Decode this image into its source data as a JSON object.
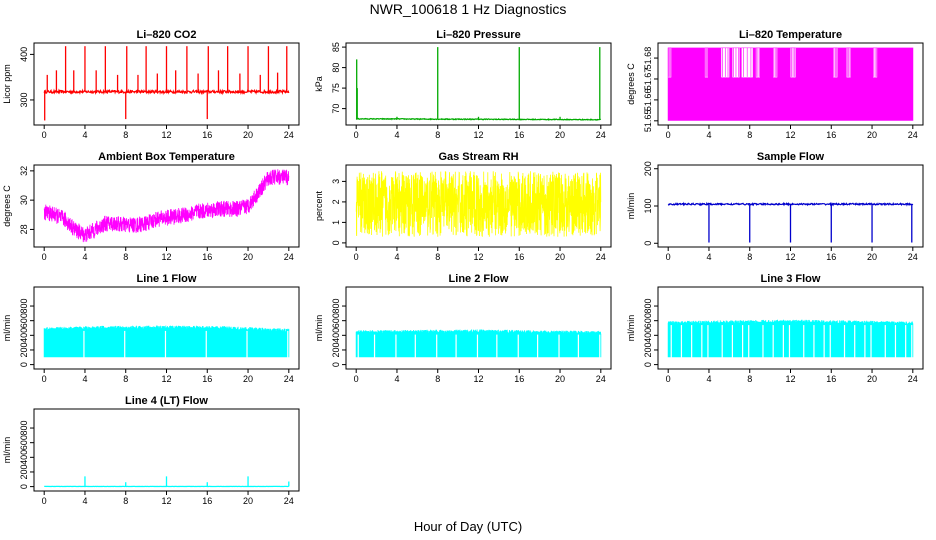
{
  "figure": {
    "title": "NWR_100618  1 Hz Diagnostics",
    "xlabel": "Hour of Day (UTC)"
  },
  "chart_data": [
    {
      "type": "line",
      "title": "Li–820 CO2",
      "ylabel": "Licor ppm",
      "color": "#ff0000",
      "xlim": [
        -1,
        25
      ],
      "xticks": [
        0,
        4,
        8,
        12,
        16,
        20,
        24
      ],
      "ylim": [
        245,
        425
      ],
      "yticks": [
        300,
        400
      ],
      "style": "spiky",
      "baseline": 318,
      "noise": 3,
      "spikes": [
        {
          "x": 0.05,
          "y": 255
        },
        {
          "x": 0.3,
          "y": 355
        },
        {
          "x": 1.2,
          "y": 365
        },
        {
          "x": 2.1,
          "y": 418
        },
        {
          "x": 2.9,
          "y": 365
        },
        {
          "x": 4.0,
          "y": 418
        },
        {
          "x": 5.1,
          "y": 365
        },
        {
          "x": 6.0,
          "y": 418
        },
        {
          "x": 7.2,
          "y": 355
        },
        {
          "x": 8.0,
          "y": 258
        },
        {
          "x": 8.1,
          "y": 418
        },
        {
          "x": 9.2,
          "y": 355
        },
        {
          "x": 10.0,
          "y": 418
        },
        {
          "x": 11.1,
          "y": 358
        },
        {
          "x": 12.0,
          "y": 418
        },
        {
          "x": 12.9,
          "y": 365
        },
        {
          "x": 14.0,
          "y": 418
        },
        {
          "x": 15.1,
          "y": 358
        },
        {
          "x": 16.0,
          "y": 258
        },
        {
          "x": 16.1,
          "y": 418
        },
        {
          "x": 17.1,
          "y": 365
        },
        {
          "x": 18.0,
          "y": 418
        },
        {
          "x": 19.2,
          "y": 358
        },
        {
          "x": 20.0,
          "y": 418
        },
        {
          "x": 21.2,
          "y": 355
        },
        {
          "x": 22.0,
          "y": 418
        },
        {
          "x": 22.9,
          "y": 360
        },
        {
          "x": 23.8,
          "y": 418
        }
      ]
    },
    {
      "type": "line",
      "title": "Li–820 Pressure",
      "ylabel": "kPa",
      "color": "#00aa00",
      "xlim": [
        -1,
        25
      ],
      "xticks": [
        0,
        4,
        8,
        12,
        16,
        20,
        24
      ],
      "ylim": [
        66,
        86
      ],
      "yticks": [
        70,
        75,
        80,
        85
      ],
      "style": "spiky",
      "baseline": 67.4,
      "noise": 0.1,
      "trend": [
        [
          0,
          67.5
        ],
        [
          24,
          67.3
        ]
      ],
      "spikes": [
        {
          "x": 0.05,
          "y": 82
        },
        {
          "x": 0.1,
          "y": 75
        },
        {
          "x": 4.0,
          "y": 68
        },
        {
          "x": 8.0,
          "y": 85
        },
        {
          "x": 12.0,
          "y": 68
        },
        {
          "x": 16.0,
          "y": 85
        },
        {
          "x": 20.0,
          "y": 68
        },
        {
          "x": 23.9,
          "y": 85
        }
      ]
    },
    {
      "type": "area",
      "title": "Li–820 Temperature",
      "ylabel": "degrees C",
      "color": "#ff00ff",
      "xlim": [
        -1,
        25
      ],
      "xticks": [
        0,
        4,
        8,
        12,
        16,
        20,
        24
      ],
      "ylim": [
        51.648,
        51.6872
      ],
      "yticks": [
        51.65,
        51.66,
        51.67,
        51.68
      ],
      "style": "band",
      "band": [
        51.65,
        51.685
      ],
      "gap_segments": [
        [
          0.0,
          0.3,
          51.671
        ],
        [
          3.6,
          3.9,
          51.671
        ],
        [
          5.2,
          6.0,
          51.671
        ],
        [
          6.3,
          7.0,
          51.671
        ],
        [
          7.2,
          8.3,
          51.671
        ],
        [
          8.6,
          9.0,
          51.671
        ],
        [
          10.3,
          10.7,
          51.671
        ],
        [
          12.0,
          12.5,
          51.671
        ],
        [
          16.2,
          16.6,
          51.671
        ],
        [
          17.5,
          17.9,
          51.671
        ],
        [
          20.1,
          20.5,
          51.671
        ]
      ]
    },
    {
      "type": "line",
      "title": "Ambient Box Temperature",
      "ylabel": "degrees C",
      "color": "#ff00ff",
      "xlim": [
        -1,
        25
      ],
      "xticks": [
        0,
        4,
        8,
        12,
        16,
        20,
        24
      ],
      "ylim": [
        26.8,
        32.4
      ],
      "yticks": [
        28,
        30,
        32
      ],
      "style": "noisy",
      "noise": 0.55,
      "trend": [
        [
          0,
          29.2
        ],
        [
          1,
          29.0
        ],
        [
          2,
          28.7
        ],
        [
          3,
          28.0
        ],
        [
          4,
          27.6
        ],
        [
          5,
          28.0
        ],
        [
          6,
          28.4
        ],
        [
          7,
          28.4
        ],
        [
          8,
          28.3
        ],
        [
          9,
          28.3
        ],
        [
          10,
          28.4
        ],
        [
          11,
          28.7
        ],
        [
          12,
          28.8
        ],
        [
          13,
          28.9
        ],
        [
          14,
          29.0
        ],
        [
          15,
          29.2
        ],
        [
          16,
          29.3
        ],
        [
          17,
          29.4
        ],
        [
          18,
          29.4
        ],
        [
          19,
          29.4
        ],
        [
          20,
          29.6
        ],
        [
          21,
          30.5
        ],
        [
          22,
          31.5
        ],
        [
          23,
          31.6
        ],
        [
          24,
          31.5
        ]
      ]
    },
    {
      "type": "line",
      "title": "Gas Stream RH",
      "ylabel": "percent",
      "color": "#ffff00",
      "xlim": [
        -1,
        25
      ],
      "xticks": [
        0,
        4,
        8,
        12,
        16,
        20,
        24
      ],
      "ylim": [
        -0.2,
        3.8
      ],
      "yticks": [
        0,
        1,
        2,
        3
      ],
      "style": "noisy",
      "noise": 1.6,
      "trend": [
        [
          0,
          1.9
        ],
        [
          24,
          1.9
        ]
      ]
    },
    {
      "type": "line",
      "title": "Sample Flow",
      "ylabel": "ml/min",
      "color": "#0000cc",
      "xlim": [
        -1,
        25
      ],
      "xticks": [
        0,
        4,
        8,
        12,
        16,
        20,
        24
      ],
      "ylim": [
        -10,
        210
      ],
      "yticks": [
        0,
        100,
        200
      ],
      "style": "spiky",
      "baseline": 105,
      "noise": 2,
      "spikes": [
        {
          "x": 4.0,
          "y": 2
        },
        {
          "x": 8.0,
          "y": 2
        },
        {
          "x": 12.0,
          "y": 2
        },
        {
          "x": 16.0,
          "y": 2
        },
        {
          "x": 20.0,
          "y": 2
        },
        {
          "x": 23.9,
          "y": 2
        }
      ]
    },
    {
      "type": "area",
      "title": "Line 1 Flow",
      "ylabel": "ml/min",
      "color": "#00ffff",
      "xlim": [
        -1,
        25
      ],
      "xticks": [
        0,
        4,
        8,
        12,
        16,
        20,
        24
      ],
      "ylim": [
        -60,
        1060
      ],
      "yticks": [
        0,
        200,
        400,
        600,
        800
      ],
      "style": "band",
      "band": [
        100,
        520
      ],
      "band_top_trend": [
        [
          0,
          510
        ],
        [
          6,
          530
        ],
        [
          12,
          535
        ],
        [
          18,
          525
        ],
        [
          24,
          490
        ]
      ],
      "gaps": [
        3.9,
        7.9,
        11.9,
        15.9,
        19.9,
        23.9
      ]
    },
    {
      "type": "area",
      "title": "Line 2 Flow",
      "ylabel": "ml/min",
      "color": "#00ffff",
      "xlim": [
        -1,
        25
      ],
      "xticks": [
        0,
        4,
        8,
        12,
        16,
        20,
        24
      ],
      "ylim": [
        -60,
        1060
      ],
      "yticks": [
        0,
        200,
        400,
        600,
        800
      ],
      "style": "band",
      "band": [
        100,
        470
      ],
      "band_top_trend": [
        [
          0,
          470
        ],
        [
          12,
          480
        ],
        [
          24,
          460
        ]
      ],
      "gaps": [
        0.2,
        1.8,
        3.9,
        5.8,
        7.9,
        9.8,
        11.9,
        13.8,
        15.9,
        17.8,
        19.9,
        21.8,
        23.9
      ]
    },
    {
      "type": "area",
      "title": "Line 3 Flow",
      "ylabel": "ml/min",
      "color": "#00ffff",
      "xlim": [
        -1,
        25
      ],
      "xticks": [
        0,
        4,
        8,
        12,
        16,
        20,
        24
      ],
      "ylim": [
        -60,
        1060
      ],
      "yticks": [
        0,
        200,
        400,
        600,
        800
      ],
      "style": "band",
      "band": [
        100,
        600
      ],
      "band_top_trend": [
        [
          0,
          595
        ],
        [
          12,
          615
        ],
        [
          24,
          590
        ]
      ],
      "gaps": [
        0.3,
        1.3,
        2.3,
        3.3,
        3.9,
        5.3,
        6.3,
        7.3,
        7.9,
        9.3,
        10.3,
        11.3,
        11.9,
        13.3,
        14.3,
        15.3,
        15.9,
        17.3,
        18.3,
        19.3,
        19.9,
        21.3,
        22.3,
        23.3,
        23.9
      ]
    },
    {
      "type": "line",
      "title": "Line 4 (LT) Flow",
      "ylabel": "ml/min",
      "color": "#00ffff",
      "xlim": [
        -1,
        25
      ],
      "xticks": [
        0,
        4,
        8,
        12,
        16,
        20,
        24
      ],
      "ylim": [
        -60,
        1060
      ],
      "yticks": [
        0,
        200,
        400,
        600,
        800
      ],
      "style": "spiky",
      "baseline": 2,
      "noise": 1,
      "spikes": [
        {
          "x": 4.0,
          "y": 140
        },
        {
          "x": 8.0,
          "y": 60
        },
        {
          "x": 12.0,
          "y": 140
        },
        {
          "x": 16.0,
          "y": 60
        },
        {
          "x": 20.0,
          "y": 140
        },
        {
          "x": 24.0,
          "y": 70
        }
      ]
    }
  ]
}
